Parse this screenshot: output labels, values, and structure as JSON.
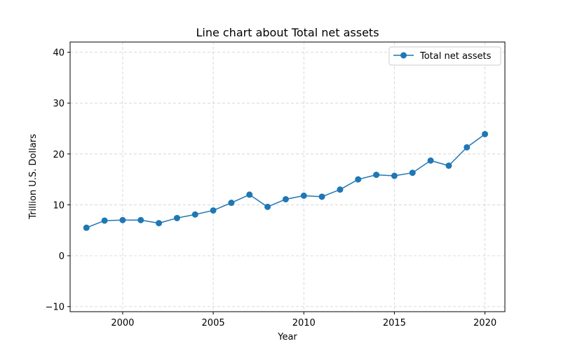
{
  "chart_data": {
    "type": "line",
    "title": "Line chart about Total net assets",
    "xlabel": "Year",
    "ylabel": "Trillion U.S. Dollars",
    "xlim": [
      1997.1,
      2021.1
    ],
    "ylim": [
      -11,
      42
    ],
    "xticks": [
      2000,
      2005,
      2010,
      2015,
      2020
    ],
    "yticks": [
      -10,
      0,
      10,
      20,
      30,
      40
    ],
    "xtick_labels": [
      "2000",
      "2005",
      "2010",
      "2015",
      "2020"
    ],
    "ytick_labels": [
      "−10",
      "0",
      "10",
      "20",
      "30",
      "40"
    ],
    "grid": true,
    "legend_position": "upper-right",
    "series": [
      {
        "name": "Total net assets",
        "color": "#1f77b4",
        "marker": "circle",
        "x": [
          1998,
          1999,
          2000,
          2001,
          2002,
          2003,
          2004,
          2005,
          2006,
          2007,
          2008,
          2009,
          2010,
          2011,
          2012,
          2013,
          2014,
          2015,
          2016,
          2017,
          2018,
          2019,
          2020
        ],
        "y": [
          5.5,
          6.9,
          7.0,
          7.0,
          6.4,
          7.4,
          8.1,
          8.9,
          10.4,
          12.0,
          9.6,
          11.1,
          11.8,
          11.6,
          13.0,
          15.0,
          15.9,
          15.7,
          16.3,
          18.7,
          17.7,
          21.3,
          23.9
        ]
      }
    ]
  }
}
